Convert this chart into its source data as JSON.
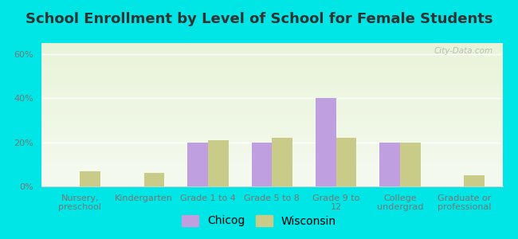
{
  "title": "School Enrollment by Level of School for Female Students",
  "categories": [
    "Nursery,\npreschool",
    "Kindergarten",
    "Grade 1 to 4",
    "Grade 5 to 8",
    "Grade 9 to\n12",
    "College\nundergrad",
    "Graduate or\nprofessional"
  ],
  "chicog_values": [
    0,
    0,
    20,
    20,
    40,
    20,
    0
  ],
  "wisconsin_values": [
    7,
    6,
    21,
    22,
    22,
    20,
    5
  ],
  "chicog_color": "#bf9fdf",
  "wisconsin_color": "#c8cc88",
  "background_color": "#00e5e5",
  "plot_bg_top": "#f5faf0",
  "plot_bg_bottom": "#e8f4d8",
  "ylabel_ticks": [
    "0%",
    "20%",
    "40%",
    "60%"
  ],
  "yticks": [
    0,
    20,
    40,
    60
  ],
  "ylim": [
    0,
    65
  ],
  "bar_width": 0.32,
  "title_fontsize": 13,
  "tick_fontsize": 8,
  "legend_fontsize": 10,
  "watermark": "City-Data.com"
}
